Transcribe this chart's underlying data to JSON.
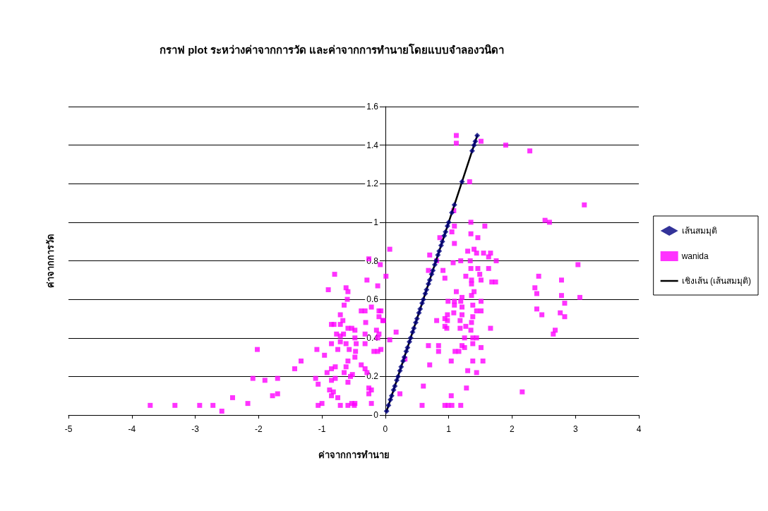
{
  "chart_data": {
    "type": "scatter",
    "title": "กราฟ plot ระหว่างค่าจากการวัด และค่าจากการทำนายโดยแบบจำลองวนิดา",
    "xlabel": "ค่าจากการทำนาย",
    "ylabel": "ค่าจากการวัด",
    "xlim": [
      -5,
      4
    ],
    "xticks": [
      -5,
      -4,
      -3,
      -2,
      -1,
      0,
      1,
      2,
      3,
      4
    ],
    "ylim": [
      0,
      1.6
    ],
    "yticks": [
      0,
      0.2,
      0.4,
      0.6,
      0.8,
      1,
      1.2,
      1.4,
      1.6
    ],
    "grid": "y",
    "legend": "right",
    "series": [
      {
        "name": "เส้นสมมุติ",
        "marker": "diamond",
        "color": "#000080",
        "x": [
          0.02,
          0.05,
          0.08,
          0.1,
          0.13,
          0.15,
          0.18,
          0.2,
          0.23,
          0.25,
          0.28,
          0.3,
          0.33,
          0.35,
          0.38,
          0.4,
          0.43,
          0.45,
          0.48,
          0.5,
          0.53,
          0.55,
          0.58,
          0.6,
          0.63,
          0.65,
          0.68,
          0.7,
          0.73,
          0.75,
          0.78,
          0.8,
          0.83,
          0.85,
          0.88,
          0.9,
          0.93,
          0.95,
          0.98,
          1,
          1.05,
          1.09,
          1.21,
          1.37,
          1.4,
          1.42,
          1.45
        ],
        "values": [
          0.02,
          0.05,
          0.08,
          0.1,
          0.13,
          0.15,
          0.18,
          0.2,
          0.23,
          0.25,
          0.28,
          0.3,
          0.33,
          0.35,
          0.38,
          0.4,
          0.43,
          0.45,
          0.48,
          0.5,
          0.53,
          0.55,
          0.58,
          0.6,
          0.63,
          0.65,
          0.68,
          0.7,
          0.73,
          0.75,
          0.78,
          0.8,
          0.83,
          0.85,
          0.88,
          0.9,
          0.93,
          0.95,
          0.98,
          1,
          1.05,
          1.09,
          1.21,
          1.37,
          1.4,
          1.42,
          1.45
        ]
      },
      {
        "name": "wanida",
        "marker": "square",
        "color": "#ff00ff",
        "x": [
          -3.71,
          -3.32,
          -2.93,
          -2.72,
          -2.58,
          -2.41,
          -2.17,
          -2.02,
          -2.09,
          -1.9,
          -1.7,
          -1.78,
          -1.7,
          -1.43,
          -1.33,
          -1.08,
          -0.96,
          -1.1,
          -1.06,
          -1.06,
          -1,
          -0.9,
          -0.8,
          -0.85,
          -0.75,
          -0.92,
          -0.85,
          -0.79,
          -0.85,
          -0.79,
          -0.88,
          -0.82,
          -0.85,
          -0.75,
          -0.71,
          -0.85,
          -0.81,
          -0.71,
          -0.67,
          -0.71,
          -0.77,
          -0.71,
          -0.66,
          -0.71,
          -0.62,
          -0.59,
          -0.6,
          -0.65,
          -0.59,
          -0.53,
          -0.48,
          -0.62,
          -0.57,
          -0.59,
          -0.62,
          -0.65,
          -0.52,
          -0.55,
          -0.59,
          -0.48,
          -0.46,
          -0.47,
          -0.48,
          -0.38,
          -0.32,
          -0.29,
          -0.26,
          -0.22,
          -0.31,
          -0.32,
          -0.32,
          -0.38,
          -0.32,
          -0.18,
          -0.12,
          -0.07,
          -0.08,
          -0.12,
          -0.1,
          -0.1,
          -0.04,
          -0.14,
          -0.1,
          -0.12,
          -0.26,
          -0.22,
          -0.22,
          -0.59,
          -0.53,
          -0.48,
          -0.49,
          -0.26,
          -0.29,
          -0.07,
          -0.03,
          0.07,
          0.01,
          0.07,
          0.17,
          0.31,
          0.23,
          1.12,
          1.12,
          1.51,
          1.9,
          1.33,
          1.08,
          1.09,
          1.05,
          1.35,
          1.57,
          1.35,
          1.46,
          1.09,
          0.86,
          0.7,
          0.81,
          0.68,
          0.91,
          0.94,
          1.07,
          1.19,
          1.3,
          1.4,
          1.44,
          1.55,
          1.66,
          1.63,
          1.75,
          1.34,
          1.35,
          1.46,
          1.63,
          1.49,
          1.27,
          1.36,
          1.51,
          1.68,
          1.74,
          1.36,
          1.12,
          1.4,
          1.36,
          0.99,
          1.09,
          1.21,
          1.09,
          1.19,
          1.51,
          1.38,
          1.44,
          1.51,
          1.08,
          1.21,
          0.98,
          1.21,
          1.38,
          0.81,
          0.94,
          0.98,
          1.18,
          1.36,
          0.94,
          0.97,
          1.18,
          1.27,
          1.35,
          1.66,
          1.25,
          1.38,
          1.44,
          1.38,
          1.21,
          1.25,
          1.1,
          1.16,
          1.51,
          0.84,
          0.84,
          0.68,
          0.7,
          1.04,
          1.38,
          1.54,
          1.3,
          1.44,
          0.6,
          1.04,
          1.28,
          0.58,
          0.94,
          0.99,
          1.05,
          1.19,
          2.16,
          2.28,
          3.14,
          2.52,
          2.59,
          3.04,
          2.42,
          2.78,
          2.36,
          2.39,
          2.78,
          3.07,
          2.83,
          2.39,
          2.47,
          2.76,
          2.83,
          2.68,
          2.65
        ],
        "values": [
          0.05,
          0.05,
          0.05,
          0.05,
          0.02,
          0.09,
          0.06,
          0.34,
          0.19,
          0.18,
          0.19,
          0.1,
          0.11,
          0.24,
          0.28,
          0.34,
          0.31,
          0.19,
          0.16,
          0.05,
          0.06,
          0.65,
          0.73,
          0.37,
          0.34,
          0.22,
          0.24,
          0.25,
          0.18,
          0.19,
          0.13,
          0.12,
          0.1,
          0.09,
          0.05,
          0.47,
          0.47,
          0.52,
          0.49,
          0.47,
          0.42,
          0.41,
          0.42,
          0.38,
          0.66,
          0.64,
          0.6,
          0.57,
          0.45,
          0.45,
          0.44,
          0.37,
          0.34,
          0.28,
          0.25,
          0.22,
          0.21,
          0.2,
          0.17,
          0.4,
          0.37,
          0.33,
          0.3,
          0.54,
          0.54,
          0.7,
          0.81,
          0.56,
          0.48,
          0.42,
          0.37,
          0.26,
          0.24,
          0.33,
          0.33,
          0.34,
          0.78,
          0.67,
          0.54,
          0.51,
          0.49,
          0.44,
          0.42,
          0.4,
          0.14,
          0.13,
          0.06,
          0.05,
          0.06,
          0.06,
          0.05,
          0.11,
          0.22,
          0.54,
          0.49,
          0.86,
          0.72,
          0.39,
          0.43,
          0.29,
          0.11,
          1.45,
          1.41,
          1.42,
          1.4,
          1.21,
          1.06,
          0.98,
          0.95,
          1,
          0.98,
          0.94,
          0.92,
          0.89,
          0.92,
          0.83,
          0.8,
          0.75,
          0.75,
          0.71,
          0.79,
          0.8,
          0.85,
          0.86,
          0.84,
          0.84,
          0.84,
          0.82,
          0.8,
          0.8,
          0.76,
          0.76,
          0.76,
          0.73,
          0.72,
          0.7,
          0.7,
          0.69,
          0.69,
          0.68,
          0.64,
          0.64,
          0.62,
          0.59,
          0.59,
          0.61,
          0.57,
          0.59,
          0.59,
          0.57,
          0.54,
          0.54,
          0.53,
          0.56,
          0.52,
          0.52,
          0.51,
          0.49,
          0.5,
          0.49,
          0.49,
          0.48,
          0.46,
          0.45,
          0.45,
          0.46,
          0.44,
          0.45,
          0.4,
          0.4,
          0.4,
          0.37,
          0.36,
          0.35,
          0.33,
          0.33,
          0.35,
          0.36,
          0.33,
          0.36,
          0.26,
          0.28,
          0.28,
          0.28,
          0.23,
          0.22,
          0.15,
          0.1,
          0.14,
          0.05,
          0.05,
          0.05,
          0.05,
          0.05,
          0.12,
          1.37,
          1.09,
          1.01,
          1,
          0.78,
          0.72,
          0.7,
          0.66,
          0.63,
          0.62,
          0.61,
          0.58,
          0.55,
          0.52,
          0.53,
          0.51,
          0.44,
          0.42
        ]
      },
      {
        "name": "เชิงเส้น (เส้นสมมุติ)",
        "type": "line",
        "marker": "none",
        "line_style": "solid",
        "color": "#000000",
        "x": [
          0.02,
          1.45
        ],
        "values": [
          0.02,
          1.45
        ]
      }
    ]
  }
}
